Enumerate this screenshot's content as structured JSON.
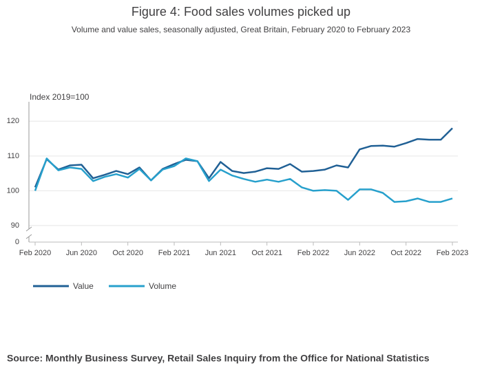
{
  "chart_data": {
    "type": "line",
    "title": "Figure 4: Food sales volumes picked up",
    "subtitle": "Volume and value sales, seasonally adjusted, Great Britain, February 2020 to February 2023",
    "y_label": "Index 2019=100",
    "source": "Source: Monthly Business Survey, Retail Sales Inquiry from the Office for National Statistics",
    "categories": [
      "Feb 2020",
      null,
      null,
      null,
      "Jun 2020",
      null,
      null,
      null,
      "Oct 2020",
      null,
      null,
      null,
      "Feb 2021",
      null,
      null,
      null,
      "Jun 2021",
      null,
      null,
      null,
      "Oct 2021",
      null,
      null,
      null,
      "Feb 2022",
      null,
      null,
      null,
      "Jun 2022",
      null,
      null,
      null,
      "Oct 2022",
      null,
      null,
      null,
      "Feb 2023"
    ],
    "series": [
      {
        "name": "Value",
        "color": "#206095",
        "values": [
          101,
          109.1,
          106.1,
          107.3,
          107.5,
          103.6,
          104.6,
          105.7,
          104.8,
          106.7,
          103,
          106.3,
          107.7,
          108.9,
          108.5,
          103.6,
          108.3,
          105.7,
          105.1,
          105.5,
          106.5,
          106.3,
          107.7,
          105.5,
          105.7,
          106.1,
          107.3,
          106.7,
          111.9,
          112.9,
          113,
          112.7,
          113.7,
          114.9,
          114.7,
          114.7,
          118
        ]
      },
      {
        "name": "Volume",
        "color": "#27a0cc",
        "values": [
          100,
          109.3,
          105.9,
          106.7,
          106.3,
          102.8,
          104,
          104.8,
          103.8,
          106.3,
          103,
          106.1,
          107.1,
          109.3,
          108.5,
          102.8,
          106.1,
          104.4,
          103.4,
          102.6,
          103.2,
          102.6,
          103.4,
          101,
          100,
          100.2,
          100,
          97.4,
          100.4,
          100.4,
          99.4,
          96.8,
          97,
          97.8,
          96.8,
          96.8,
          97.8
        ]
      }
    ],
    "ylim": [
      0,
      125
    ],
    "yticks": [
      0,
      90,
      100,
      110,
      120
    ],
    "axis_break": true,
    "grid": true,
    "legend": "bottom-left"
  }
}
